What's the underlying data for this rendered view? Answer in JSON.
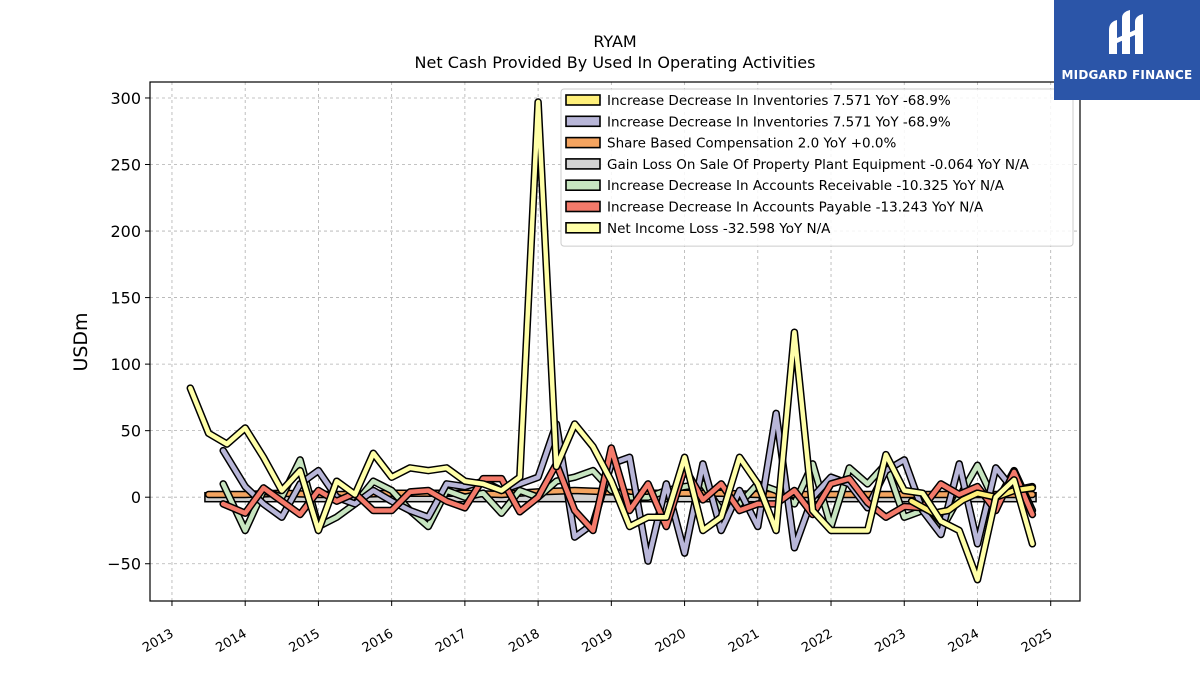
{
  "chart_data": {
    "type": "line",
    "title": "RYAM",
    "subtitle": "Net Cash Provided By Used In Operating Activities",
    "ylabel": "USDm",
    "xlabel": "",
    "ylim": [
      -78,
      312
    ],
    "xlim": [
      2012.7,
      2025.4
    ],
    "yticks": [
      -50,
      0,
      50,
      100,
      150,
      200,
      250,
      300
    ],
    "xticks": [
      2013,
      2014,
      2015,
      2016,
      2017,
      2018,
      2019,
      2020,
      2021,
      2022,
      2023,
      2024,
      2025
    ],
    "grid": true,
    "legend_position": "top-right",
    "series": [
      {
        "name": "Increase Decrease In Inventories",
        "legend_value": "7.571",
        "legend_yoy": "YoY -68.9%",
        "color": "#fff07a",
        "x": [
          2023.1,
          2023.4,
          2023.6,
          2023.8,
          2024.0,
          2024.25,
          2024.5,
          2024.75
        ],
        "y": [
          -3,
          -12,
          -10,
          -2,
          3,
          0,
          5,
          7
        ]
      },
      {
        "name": "Increase Decrease In Inventories",
        "legend_value": "7.571",
        "legend_yoy": "YoY -68.9%",
        "color": "#b8b6d8",
        "x": [
          2013.7,
          2014.0,
          2014.25,
          2014.5,
          2014.75,
          2015.0,
          2015.25,
          2015.5,
          2015.75,
          2016.0,
          2016.25,
          2016.5,
          2016.75,
          2017.0,
          2017.25,
          2017.5,
          2017.75,
          2018.0,
          2018.25,
          2018.5,
          2018.75,
          2019.0,
          2019.25,
          2019.5,
          2019.75,
          2020.0,
          2020.25,
          2020.5,
          2020.75,
          2021.0,
          2021.25,
          2021.5,
          2021.75,
          2022.0,
          2022.25,
          2022.5,
          2022.75,
          2023.0,
          2023.25,
          2023.5,
          2023.75,
          2024.0,
          2024.25,
          2024.5,
          2024.75
        ],
        "y": [
          35,
          8,
          -5,
          -15,
          10,
          20,
          0,
          -5,
          5,
          -3,
          -10,
          -15,
          10,
          8,
          12,
          5,
          10,
          15,
          55,
          -30,
          -20,
          25,
          30,
          -48,
          10,
          -42,
          25,
          -25,
          5,
          -22,
          63,
          -38,
          0,
          15,
          10,
          -8,
          20,
          28,
          -10,
          -28,
          25,
          -35,
          22,
          5,
          8
        ]
      },
      {
        "name": "Share Based Compensation",
        "legend_value": "2.0",
        "legend_yoy": "YoY +0.0%",
        "color": "#f4a460",
        "x": [
          2013.5,
          2014.0,
          2014.5,
          2015.0,
          2015.5,
          2016.0,
          2016.5,
          2017.0,
          2017.5,
          2018.0,
          2018.5,
          2019.0,
          2019.5,
          2020.0,
          2020.5,
          2021.0,
          2021.5,
          2022.0,
          2022.5,
          2023.0,
          2023.5,
          2024.0,
          2024.5,
          2024.75
        ],
        "y": [
          2,
          2,
          3,
          2,
          2,
          3,
          3,
          3,
          2,
          4,
          5,
          4,
          3,
          3,
          3,
          2,
          2,
          2,
          2,
          2,
          2,
          2,
          2,
          2
        ]
      },
      {
        "name": "Gain Loss On Sale Of Property Plant Equipment",
        "legend_value": "-0.064",
        "legend_yoy": "YoY N/A",
        "color": "#d3d3d3",
        "x": [
          2013.45,
          2024.8
        ],
        "y": [
          0,
          0
        ]
      },
      {
        "name": "Increase Decrease In Accounts Receivable",
        "legend_value": "-10.325",
        "legend_yoy": "YoY N/A",
        "color": "#c7e5c0",
        "x": [
          2013.7,
          2014.0,
          2014.25,
          2014.5,
          2014.75,
          2015.0,
          2015.25,
          2015.5,
          2015.75,
          2016.0,
          2016.25,
          2016.5,
          2016.75,
          2017.0,
          2017.25,
          2017.5,
          2017.75,
          2018.0,
          2018.25,
          2018.5,
          2018.75,
          2019.0,
          2019.25,
          2019.5,
          2019.75,
          2020.0,
          2020.25,
          2020.5,
          2020.75,
          2021.0,
          2021.25,
          2021.5,
          2021.75,
          2022.0,
          2022.25,
          2022.5,
          2022.75,
          2023.0,
          2023.25,
          2023.5,
          2023.75,
          2024.0,
          2024.25,
          2024.5,
          2024.75
        ],
        "y": [
          10,
          -25,
          5,
          0,
          28,
          -22,
          -15,
          -5,
          12,
          5,
          -10,
          -22,
          5,
          0,
          3,
          -12,
          5,
          0,
          12,
          15,
          20,
          5,
          0,
          0,
          5,
          8,
          10,
          -10,
          -5,
          10,
          5,
          -5,
          25,
          -22,
          22,
          10,
          25,
          -15,
          -10,
          -25,
          0,
          24,
          -5,
          20,
          -10
        ]
      },
      {
        "name": "Increase Decrease In Accounts Payable",
        "legend_value": "-13.243",
        "legend_yoy": "YoY N/A",
        "color": "#f47a6a",
        "x": [
          2013.7,
          2014.0,
          2014.25,
          2014.5,
          2014.75,
          2015.0,
          2015.25,
          2015.5,
          2015.75,
          2016.0,
          2016.25,
          2016.5,
          2016.75,
          2017.0,
          2017.25,
          2017.5,
          2017.75,
          2018.0,
          2018.25,
          2018.5,
          2018.75,
          2019.0,
          2019.25,
          2019.5,
          2019.75,
          2020.0,
          2020.25,
          2020.5,
          2020.75,
          2021.0,
          2021.25,
          2021.5,
          2021.75,
          2022.0,
          2022.25,
          2022.5,
          2022.75,
          2023.0,
          2023.25,
          2023.5,
          2023.75,
          2024.0,
          2024.25,
          2024.5,
          2024.75
        ],
        "y": [
          -5,
          -12,
          7,
          -3,
          -13,
          5,
          -3,
          3,
          -10,
          -10,
          4,
          5,
          -3,
          -8,
          14,
          14,
          -11,
          0,
          25,
          -10,
          -25,
          37,
          -10,
          10,
          -22,
          22,
          -2,
          10,
          -10,
          -5,
          -5,
          5,
          -13,
          10,
          14,
          -4,
          -15,
          -7,
          -8,
          10,
          2,
          8,
          -10,
          19,
          -13
        ]
      },
      {
        "name": "Net Income Loss",
        "legend_value": "-32.598",
        "legend_yoy": "YoY N/A",
        "color": "#ffffa8",
        "x": [
          2013.25,
          2013.5,
          2013.75,
          2014.0,
          2014.25,
          2014.5,
          2014.75,
          2015.0,
          2015.25,
          2015.5,
          2015.75,
          2016.0,
          2016.25,
          2016.5,
          2016.75,
          2017.0,
          2017.25,
          2017.5,
          2017.75,
          2018.0,
          2018.25,
          2018.5,
          2018.75,
          2019.0,
          2019.25,
          2019.5,
          2019.75,
          2020.0,
          2020.25,
          2020.5,
          2020.75,
          2021.0,
          2021.25,
          2021.5,
          2021.75,
          2022.0,
          2022.25,
          2022.5,
          2022.75,
          2023.0,
          2023.25,
          2023.5,
          2023.75,
          2024.0,
          2024.25,
          2024.5,
          2024.75
        ],
        "y": [
          82,
          48,
          40,
          52,
          30,
          5,
          20,
          -25,
          12,
          2,
          33,
          15,
          22,
          20,
          22,
          12,
          10,
          5,
          15,
          297,
          23,
          55,
          38,
          12,
          -22,
          -15,
          -15,
          30,
          -25,
          -15,
          30,
          10,
          -25,
          124,
          -10,
          -25,
          -25,
          -25,
          32,
          5,
          3,
          -18,
          -25,
          -62,
          0,
          13,
          -35
        ]
      }
    ]
  },
  "logo": {
    "text": "MIDGARD FINANCE"
  }
}
